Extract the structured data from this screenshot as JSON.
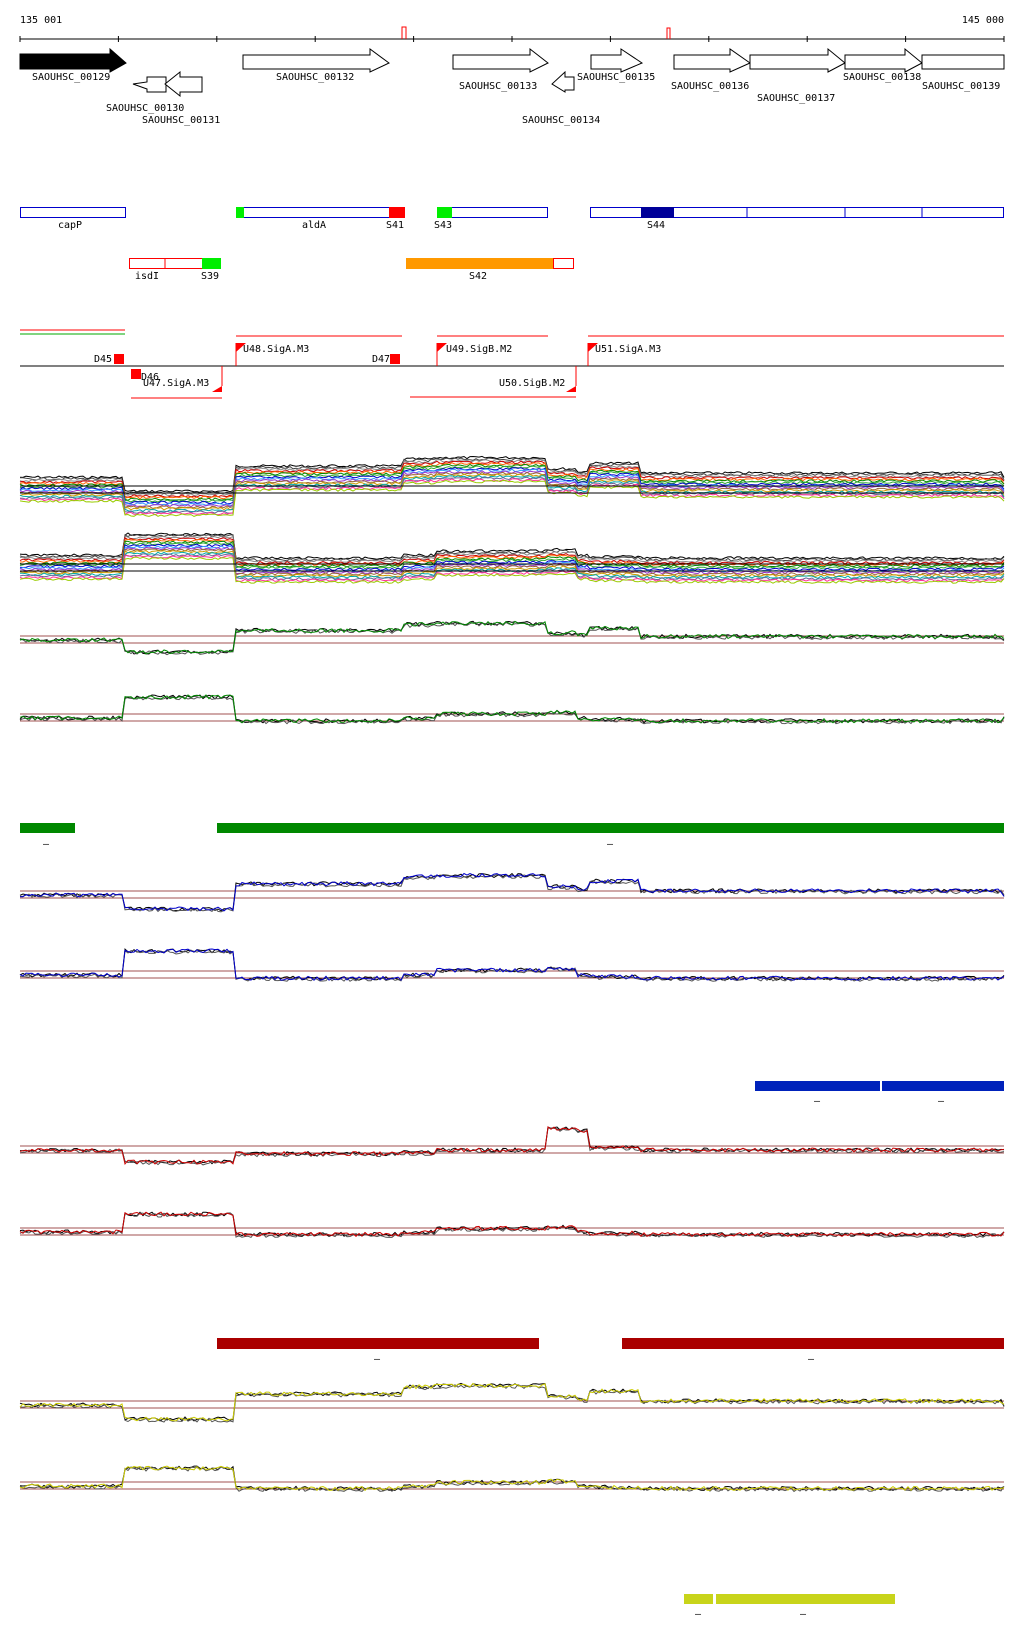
{
  "coords": {
    "start": "135 001",
    "end": "145 000"
  },
  "genes": [
    {
      "label": "SAOUHSC_00129",
      "strand": "+",
      "fill": "#000000"
    },
    {
      "label": "SAOUHSC_00130",
      "strand": "-",
      "fill": "#ffffff"
    },
    {
      "label": "SAOUHSC_00131",
      "strand": "-",
      "fill": "#ffffff"
    },
    {
      "label": "SAOUHSC_00132",
      "strand": "+",
      "fill": "#ffffff"
    },
    {
      "label": "SAOUHSC_00133",
      "strand": "+",
      "fill": "#ffffff"
    },
    {
      "label": "SAOUHSC_00134",
      "strand": "-",
      "fill": "#ffffff"
    },
    {
      "label": "SAOUHSC_00135",
      "strand": "+",
      "fill": "#ffffff"
    },
    {
      "label": "SAOUHSC_00136",
      "strand": "+",
      "fill": "#ffffff"
    },
    {
      "label": "SAOUHSC_00137",
      "strand": "+",
      "fill": "#ffffff"
    },
    {
      "label": "SAOUHSC_00138",
      "strand": "+",
      "fill": "#ffffff"
    },
    {
      "label": "SAOUHSC_00139",
      "strand": "+",
      "fill": "#ffffff"
    }
  ],
  "features": {
    "labels": [
      "capP",
      "aldA",
      "S41",
      "S43",
      "S44",
      "isdI",
      "S39",
      "S42"
    ],
    "colors": {
      "blue_outline": "#0000cc",
      "red_outline": "#ff0000",
      "green": "#00ee00",
      "red": "#ff0000",
      "navy": "#000099",
      "orange": "#ff9900"
    }
  },
  "promoters": {
    "labels": [
      "D45",
      "D46",
      "D47",
      "U47.SigA.M3",
      "U48.SigA.M3",
      "U49.SigB.M2",
      "U50.SigB.M2",
      "U51.SigA.M3"
    ]
  },
  "tracks": {
    "colors": {
      "green": "#008800",
      "blue": "#0000cc",
      "red": "#cc0000",
      "yellow": "#cccc00",
      "threshold": "#a05050"
    },
    "segment_mark": "–"
  },
  "segments": {
    "green": [
      {
        "mark": "–"
      },
      {
        "mark": "–"
      }
    ],
    "blue": [
      {
        "mark": "–"
      },
      {
        "mark": "–"
      }
    ],
    "red": [
      {
        "mark": "–"
      },
      {
        "mark": "–"
      }
    ],
    "yellow": [
      {
        "mark": "–"
      },
      {
        "mark": "–"
      }
    ]
  }
}
